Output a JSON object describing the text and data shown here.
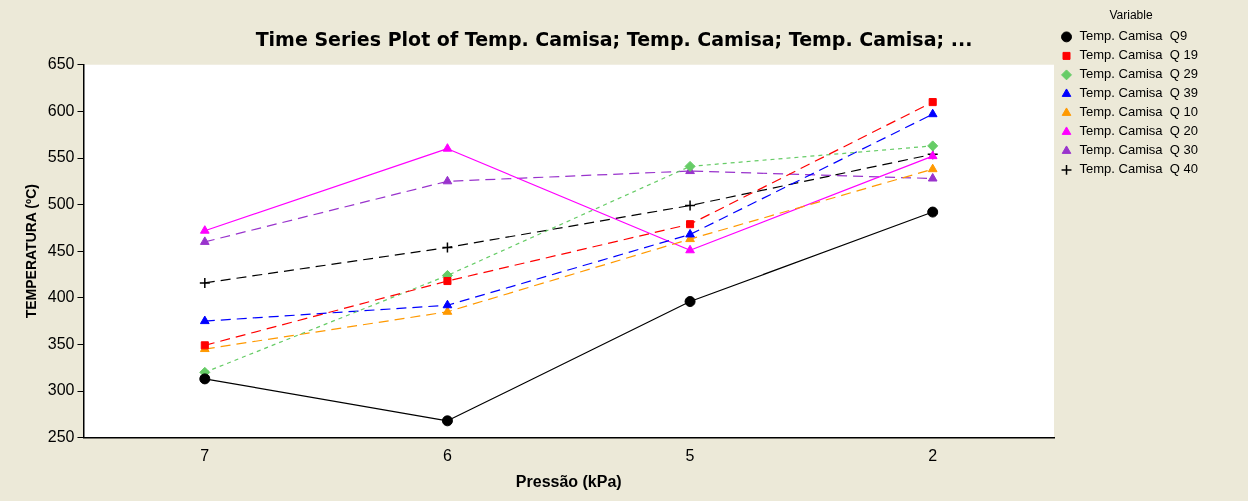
{
  "chart_data": {
    "type": "line",
    "title": "Time Series Plot of Temp. Camisa; Temp. Camisa; Temp. Camisa; ...",
    "xlabel": "Pressão (kPa)",
    "ylabel": "TEMPERATURA (ºC)",
    "legend_title": "Variable",
    "categories": [
      "7",
      "6",
      "5",
      "2"
    ],
    "ylim": [
      250,
      650
    ],
    "yticks": [
      250,
      300,
      350,
      400,
      450,
      500,
      550,
      600,
      650
    ],
    "grid": false,
    "legend": "right",
    "series": [
      {
        "name": "Temp. Camisa  Q9",
        "color": "#000000",
        "marker": "circle",
        "line_style": "solid",
        "values": [
          313,
          268,
          396,
          492
        ]
      },
      {
        "name": "Temp. Camisa  Q 19",
        "color": "#ff0000",
        "marker": "square",
        "line_style": "dashed",
        "values": [
          349,
          418,
          479,
          610
        ]
      },
      {
        "name": "Temp. Camisa  Q 29",
        "color": "#66cc66",
        "marker": "diamond",
        "line_style": "dotted",
        "values": [
          320,
          424,
          541,
          563
        ]
      },
      {
        "name": "Temp. Camisa  Q 39",
        "color": "#0000ff",
        "marker": "triangle",
        "line_style": "dashed",
        "values": [
          375,
          392,
          468,
          597
        ]
      },
      {
        "name": "Temp. Camisa  Q 10",
        "color": "#ff9900",
        "marker": "triangle",
        "line_style": "dashed",
        "values": [
          345,
          385,
          463,
          538
        ]
      },
      {
        "name": "Temp. Camisa  Q 20",
        "color": "#ff00ff",
        "marker": "triangle",
        "line_style": "solid",
        "values": [
          472,
          560,
          451,
          552
        ]
      },
      {
        "name": "Temp. Camisa  Q 30",
        "color": "#9933cc",
        "marker": "triangle",
        "line_style": "dashed",
        "values": [
          460,
          525,
          536,
          528
        ]
      },
      {
        "name": "Temp. Camisa  Q 40",
        "color": "#000000",
        "marker": "cross",
        "line_style": "dashed",
        "values": [
          416,
          454,
          499,
          554
        ]
      }
    ]
  }
}
